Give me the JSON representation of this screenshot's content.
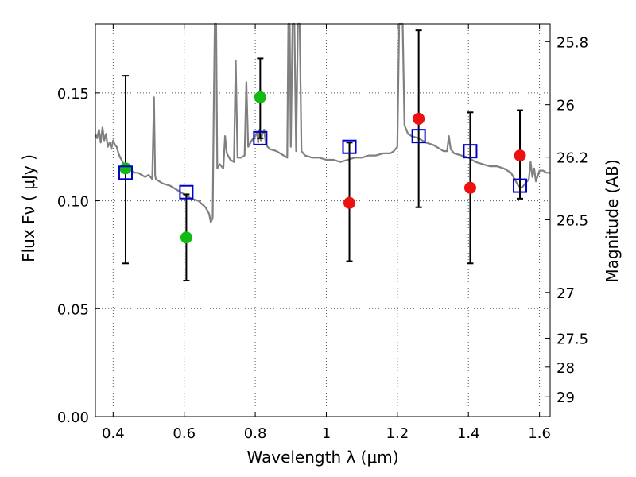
{
  "chart_data": {
    "type": "scatter",
    "xlabel": "Wavelength  λ (μm)",
    "ylabel": "Flux  Fν  ( μJy )",
    "ylabel_right": "Magnitude (AB)",
    "xlim": [
      0.35,
      1.63
    ],
    "ylim": [
      0.0,
      0.182
    ],
    "grid": true,
    "x_ticks": [
      {
        "v": 0.4,
        "label": "0.4"
      },
      {
        "v": 0.6,
        "label": "0.6"
      },
      {
        "v": 0.8,
        "label": "0.8"
      },
      {
        "v": 1.0,
        "label": "1"
      },
      {
        "v": 1.2,
        "label": "1.2"
      },
      {
        "v": 1.4,
        "label": "1.4"
      },
      {
        "v": 1.6,
        "label": "1.6"
      }
    ],
    "y_ticks": [
      {
        "v": 0.0,
        "label": "0.00"
      },
      {
        "v": 0.05,
        "label": "0.05"
      },
      {
        "v": 0.1,
        "label": "0.10"
      },
      {
        "v": 0.15,
        "label": "0.15"
      }
    ],
    "right_ticks": [
      {
        "label": "25.8",
        "mag": 25.8
      },
      {
        "label": "26",
        "mag": 26.0
      },
      {
        "label": "26.2",
        "mag": 26.2
      },
      {
        "label": "26.5",
        "mag": 26.5
      },
      {
        "label": "27",
        "mag": 27.0
      },
      {
        "label": "27.5",
        "mag": 27.5
      },
      {
        "label": "28",
        "mag": 28.0
      },
      {
        "label": "29",
        "mag": 29.0
      }
    ],
    "colors": {
      "model": "#808080",
      "green": "#11bb11",
      "red": "#ee1111",
      "square": "#0000cc",
      "errorbar": "#000000",
      "grid": "#555555"
    },
    "series": [
      {
        "marker": "circle",
        "color": "green",
        "points": [
          {
            "x": 0.435,
            "y": 0.115,
            "ylow": 0.071,
            "yhigh": 0.158
          },
          {
            "x": 0.606,
            "y": 0.083,
            "ylow": 0.063,
            "yhigh": 0.103
          },
          {
            "x": 0.814,
            "y": 0.148,
            "ylow": 0.129,
            "yhigh": 0.166
          }
        ]
      },
      {
        "marker": "circle",
        "color": "red",
        "points": [
          {
            "x": 1.065,
            "y": 0.099,
            "ylow": 0.072,
            "yhigh": 0.127
          },
          {
            "x": 1.26,
            "y": 0.138,
            "ylow": 0.097,
            "yhigh": 0.179
          },
          {
            "x": 1.405,
            "y": 0.106,
            "ylow": 0.071,
            "yhigh": 0.141
          },
          {
            "x": 1.545,
            "y": 0.121,
            "ylow": 0.101,
            "yhigh": 0.142
          }
        ]
      },
      {
        "marker": "square",
        "color": "square",
        "points": [
          {
            "x": 0.435,
            "y": 0.113
          },
          {
            "x": 0.606,
            "y": 0.104
          },
          {
            "x": 0.814,
            "y": 0.129
          },
          {
            "x": 1.065,
            "y": 0.125
          },
          {
            "x": 1.26,
            "y": 0.13
          },
          {
            "x": 1.405,
            "y": 0.123
          },
          {
            "x": 1.545,
            "y": 0.107
          }
        ]
      }
    ],
    "model_spectrum": [
      [
        0.35,
        0.131
      ],
      [
        0.355,
        0.129
      ],
      [
        0.36,
        0.133
      ],
      [
        0.365,
        0.127
      ],
      [
        0.37,
        0.134
      ],
      [
        0.375,
        0.128
      ],
      [
        0.38,
        0.131
      ],
      [
        0.385,
        0.125
      ],
      [
        0.39,
        0.127
      ],
      [
        0.395,
        0.124
      ],
      [
        0.4,
        0.128
      ],
      [
        0.405,
        0.126
      ],
      [
        0.41,
        0.125
      ],
      [
        0.415,
        0.122
      ],
      [
        0.42,
        0.12
      ],
      [
        0.43,
        0.117
      ],
      [
        0.44,
        0.116
      ],
      [
        0.45,
        0.114
      ],
      [
        0.46,
        0.113
      ],
      [
        0.47,
        0.113
      ],
      [
        0.48,
        0.112
      ],
      [
        0.49,
        0.111
      ],
      [
        0.5,
        0.112
      ],
      [
        0.505,
        0.111
      ],
      [
        0.51,
        0.11
      ],
      [
        0.515,
        0.148
      ],
      [
        0.518,
        0.112
      ],
      [
        0.52,
        0.11
      ],
      [
        0.54,
        0.108
      ],
      [
        0.56,
        0.107
      ],
      [
        0.58,
        0.105
      ],
      [
        0.6,
        0.103
      ],
      [
        0.62,
        0.101
      ],
      [
        0.64,
        0.1
      ],
      [
        0.66,
        0.097
      ],
      [
        0.67,
        0.094
      ],
      [
        0.675,
        0.09
      ],
      [
        0.68,
        0.092
      ],
      [
        0.683,
        0.14
      ],
      [
        0.686,
        0.182
      ],
      [
        0.69,
        0.182
      ],
      [
        0.693,
        0.115
      ],
      [
        0.7,
        0.117
      ],
      [
        0.71,
        0.115
      ],
      [
        0.715,
        0.13
      ],
      [
        0.72,
        0.122
      ],
      [
        0.73,
        0.119
      ],
      [
        0.74,
        0.118
      ],
      [
        0.745,
        0.165
      ],
      [
        0.75,
        0.12
      ],
      [
        0.76,
        0.12
      ],
      [
        0.77,
        0.121
      ],
      [
        0.775,
        0.155
      ],
      [
        0.78,
        0.125
      ],
      [
        0.79,
        0.128
      ],
      [
        0.8,
        0.13
      ],
      [
        0.805,
        0.132
      ],
      [
        0.808,
        0.127
      ],
      [
        0.812,
        0.133
      ],
      [
        0.816,
        0.128
      ],
      [
        0.82,
        0.131
      ],
      [
        0.825,
        0.133
      ],
      [
        0.83,
        0.126
      ],
      [
        0.84,
        0.124
      ],
      [
        0.86,
        0.123
      ],
      [
        0.87,
        0.122
      ],
      [
        0.88,
        0.121
      ],
      [
        0.89,
        0.12
      ],
      [
        0.893,
        0.182
      ],
      [
        0.897,
        0.182
      ],
      [
        0.9,
        0.125
      ],
      [
        0.905,
        0.182
      ],
      [
        0.91,
        0.182
      ],
      [
        0.915,
        0.123
      ],
      [
        0.92,
        0.182
      ],
      [
        0.925,
        0.182
      ],
      [
        0.93,
        0.123
      ],
      [
        0.94,
        0.121
      ],
      [
        0.96,
        0.12
      ],
      [
        0.98,
        0.12
      ],
      [
        1.0,
        0.119
      ],
      [
        1.02,
        0.119
      ],
      [
        1.04,
        0.118
      ],
      [
        1.06,
        0.119
      ],
      [
        1.08,
        0.12
      ],
      [
        1.1,
        0.12
      ],
      [
        1.12,
        0.121
      ],
      [
        1.14,
        0.121
      ],
      [
        1.16,
        0.122
      ],
      [
        1.18,
        0.122
      ],
      [
        1.19,
        0.123
      ],
      [
        1.2,
        0.125
      ],
      [
        1.205,
        0.182
      ],
      [
        1.21,
        0.182
      ],
      [
        1.215,
        0.182
      ],
      [
        1.22,
        0.135
      ],
      [
        1.23,
        0.131
      ],
      [
        1.24,
        0.13
      ],
      [
        1.26,
        0.129
      ],
      [
        1.28,
        0.127
      ],
      [
        1.3,
        0.126
      ],
      [
        1.32,
        0.124
      ],
      [
        1.33,
        0.123
      ],
      [
        1.34,
        0.123
      ],
      [
        1.345,
        0.13
      ],
      [
        1.35,
        0.124
      ],
      [
        1.36,
        0.122
      ],
      [
        1.38,
        0.121
      ],
      [
        1.4,
        0.12
      ],
      [
        1.42,
        0.118
      ],
      [
        1.44,
        0.117
      ],
      [
        1.46,
        0.116
      ],
      [
        1.48,
        0.116
      ],
      [
        1.5,
        0.115
      ],
      [
        1.52,
        0.113
      ],
      [
        1.53,
        0.11
      ],
      [
        1.54,
        0.107
      ],
      [
        1.55,
        0.106
      ],
      [
        1.56,
        0.108
      ],
      [
        1.57,
        0.11
      ],
      [
        1.575,
        0.118
      ],
      [
        1.58,
        0.111
      ],
      [
        1.585,
        0.115
      ],
      [
        1.59,
        0.109
      ],
      [
        1.6,
        0.114
      ],
      [
        1.61,
        0.114
      ],
      [
        1.62,
        0.113
      ],
      [
        1.63,
        0.113
      ]
    ]
  }
}
